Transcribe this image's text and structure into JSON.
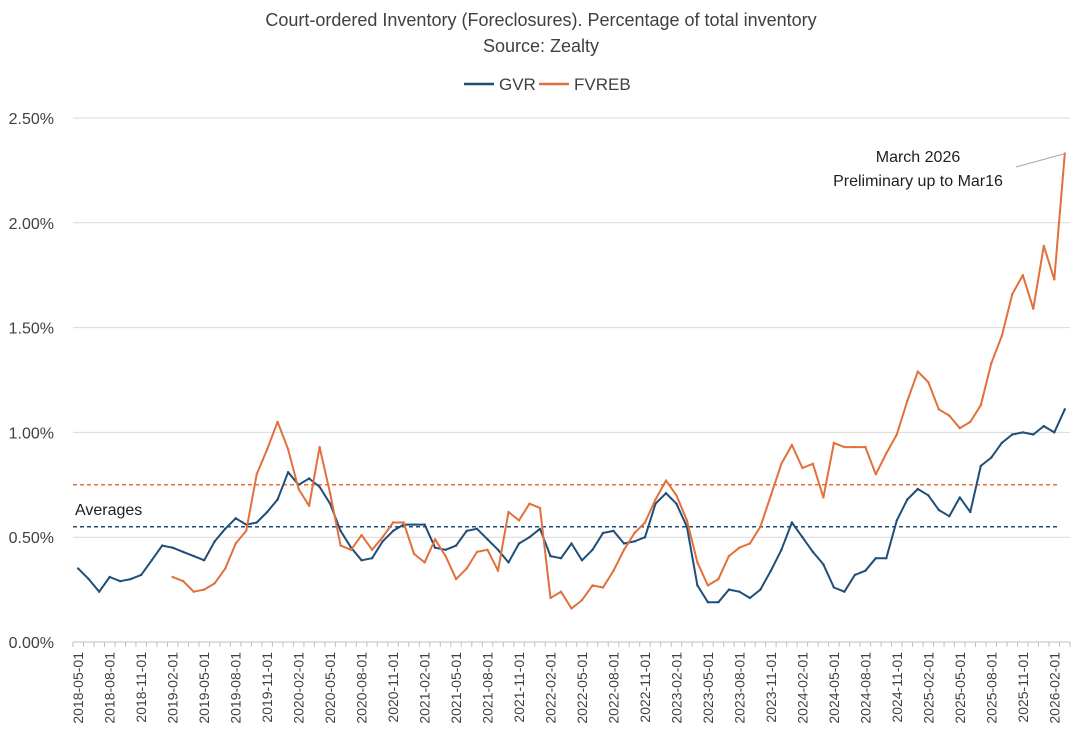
{
  "chart_data": {
    "type": "line",
    "title": "Court-ordered Inventory (Foreclosures). Percentage of total inventory",
    "subtitle": "Source: Zealty",
    "ylabel": "",
    "xlabel": "",
    "ylim": [
      0,
      2.5
    ],
    "y_ticks": [
      "0.00%",
      "0.50%",
      "1.00%",
      "1.50%",
      "2.00%",
      "2.50%"
    ],
    "y_tick_values": [
      0,
      0.5,
      1.0,
      1.5,
      2.0,
      2.5
    ],
    "x_tick_labels": [
      "2018-05-01",
      "2018-08-01",
      "2018-11-01",
      "2019-02-01",
      "2019-05-01",
      "2019-08-01",
      "2019-11-01",
      "2020-02-01",
      "2020-05-01",
      "2020-08-01",
      "2020-11-01",
      "2021-02-01",
      "2021-05-01",
      "2021-08-01",
      "2021-11-01",
      "2022-02-01",
      "2022-05-01",
      "2022-08-01",
      "2022-11-01",
      "2023-02-01",
      "2023-05-01",
      "2023-08-01",
      "2023-11-01",
      "2024-02-01",
      "2024-05-01",
      "2024-08-01",
      "2024-11-01",
      "2025-02-01",
      "2025-05-01",
      "2025-08-01",
      "2025-11-01",
      "2026-02-01"
    ],
    "start_month": "2018-05",
    "legend": [
      "GVR",
      "FVREB"
    ],
    "legend_position": "top",
    "grid": true,
    "series": [
      {
        "name": "GVR",
        "color": "#1f4e79",
        "values": [
          0.35,
          0.3,
          0.24,
          0.31,
          0.29,
          0.3,
          0.32,
          0.39,
          0.46,
          0.45,
          0.43,
          0.41,
          0.39,
          0.48,
          0.54,
          0.59,
          0.56,
          0.57,
          0.62,
          0.68,
          0.81,
          0.75,
          0.78,
          0.74,
          0.66,
          0.53,
          0.45,
          0.39,
          0.4,
          0.48,
          0.53,
          0.56,
          0.56,
          0.56,
          0.45,
          0.44,
          0.46,
          0.53,
          0.54,
          0.49,
          0.44,
          0.38,
          0.47,
          0.5,
          0.54,
          0.41,
          0.4,
          0.47,
          0.39,
          0.44,
          0.52,
          0.53,
          0.47,
          0.48,
          0.5,
          0.66,
          0.71,
          0.66,
          0.55,
          0.27,
          0.19,
          0.19,
          0.25,
          0.24,
          0.21,
          0.25,
          0.34,
          0.44,
          0.57,
          0.5,
          0.43,
          0.37,
          0.26,
          0.24,
          0.32,
          0.34,
          0.4,
          0.4,
          0.58,
          0.68,
          0.73,
          0.7,
          0.63,
          0.6,
          0.69,
          0.62,
          0.84,
          0.88,
          0.95,
          0.99,
          1.0,
          0.99,
          1.03,
          1.0,
          1.11
        ]
      },
      {
        "name": "FVREB",
        "color": "#e2703a",
        "values": [
          null,
          null,
          null,
          null,
          null,
          null,
          null,
          null,
          null,
          0.31,
          0.29,
          0.24,
          0.25,
          0.28,
          0.35,
          0.47,
          0.53,
          0.8,
          0.92,
          1.05,
          0.92,
          0.73,
          0.65,
          0.93,
          0.71,
          0.46,
          0.44,
          0.51,
          0.44,
          0.5,
          0.57,
          0.57,
          0.42,
          0.38,
          0.49,
          0.41,
          0.3,
          0.35,
          0.43,
          0.44,
          0.34,
          0.62,
          0.58,
          0.66,
          0.64,
          0.21,
          0.24,
          0.16,
          0.2,
          0.27,
          0.26,
          0.34,
          0.44,
          0.52,
          0.57,
          0.68,
          0.77,
          0.7,
          0.58,
          0.38,
          0.27,
          0.3,
          0.41,
          0.45,
          0.47,
          0.55,
          0.7,
          0.85,
          0.94,
          0.83,
          0.85,
          0.69,
          0.95,
          0.93,
          0.93,
          0.93,
          0.8,
          0.9,
          0.99,
          1.15,
          1.29,
          1.24,
          1.11,
          1.08,
          1.02,
          1.05,
          1.13,
          1.33,
          1.46,
          1.66,
          1.75,
          1.59,
          1.89,
          1.73,
          2.33
        ]
      }
    ],
    "reference_lines": [
      {
        "name": "FVREB average",
        "value": 0.75,
        "color": "#e2703a",
        "style": "dashed"
      },
      {
        "name": "GVR average",
        "value": 0.55,
        "color": "#1f4e79",
        "style": "dashed"
      }
    ],
    "annotations": {
      "averages_label": "Averages",
      "march_line1": "March 2026",
      "march_line2": "Preliminary up to Mar16"
    }
  }
}
